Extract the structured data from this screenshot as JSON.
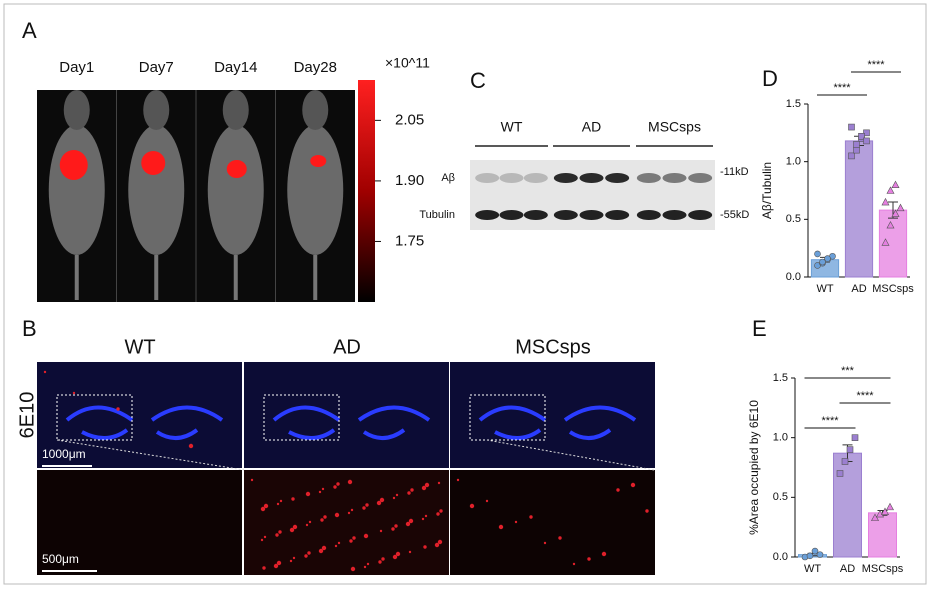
{
  "panels": {
    "A": {
      "label": "A",
      "days": [
        "Day1",
        "Day7",
        "Day14",
        "Day28"
      ],
      "colorbar": {
        "unit": "×10^11",
        "lim": [
          1.6,
          2.15
        ],
        "ticks": [
          2.05,
          {
            "value": 1.9,
            "label": "1.90"
          },
          1.75
        ]
      }
    },
    "B": {
      "label": "B",
      "groups": [
        "WT",
        "AD",
        "MSCsps"
      ],
      "stain": "6E10",
      "scale_top": "1000μm",
      "scale_bottom": "500μm"
    },
    "C": {
      "label": "C",
      "groups": [
        "WT",
        "AD",
        "MSCsps"
      ],
      "bands": [
        "Aβ",
        "Tubulin"
      ],
      "sizes": [
        "-11kD",
        "-55kD"
      ]
    }
  },
  "chart_data": [
    {
      "type": "bar",
      "label": "D",
      "ylabel": "Aβ/Tubulin",
      "categories": [
        "WT",
        "AD",
        "MSCsps"
      ],
      "colors": [
        "#6a9fd8",
        "#9b7fd0",
        "#e57fe0"
      ],
      "values": [
        0.15,
        1.18,
        0.58
      ],
      "errors": [
        0.02,
        0.04,
        0.07
      ],
      "points": [
        [
          0.1,
          0.12,
          0.15,
          0.18,
          0.2,
          0.13,
          0.16
        ],
        [
          1.05,
          1.1,
          1.2,
          1.25,
          1.3,
          1.15,
          1.22,
          1.18
        ],
        [
          0.3,
          0.45,
          0.55,
          0.6,
          0.65,
          0.75,
          0.8
        ]
      ],
      "ylim": [
        0,
        1.5
      ],
      "yticks": [
        {
          "value": 0,
          "label": "0.0"
        },
        0.5,
        {
          "value": 1,
          "label": "1.0"
        },
        1.5
      ],
      "annotations": [
        "****",
        "****"
      ]
    },
    {
      "type": "bar",
      "label": "E",
      "ylabel": "%Area occupied by 6E10",
      "categories": [
        "WT",
        "AD",
        "MSCsps"
      ],
      "colors": [
        "#6a9fd8",
        "#9b7fd0",
        "#e57fe0"
      ],
      "values": [
        0.02,
        0.87,
        0.37
      ],
      "errors": [
        0.01,
        0.07,
        0.02
      ],
      "points": [
        [
          0,
          0.01,
          0.05,
          0.02
        ],
        [
          0.7,
          0.8,
          0.9,
          1.0
        ],
        [
          0.33,
          0.36,
          0.38,
          0.42
        ]
      ],
      "ylim": [
        0,
        1.5
      ],
      "yticks": [
        {
          "value": 0,
          "label": "0.0"
        },
        0.5,
        {
          "value": 1,
          "label": "1.0"
        },
        1.5
      ],
      "annotations": [
        "***",
        "****",
        "****"
      ]
    }
  ]
}
